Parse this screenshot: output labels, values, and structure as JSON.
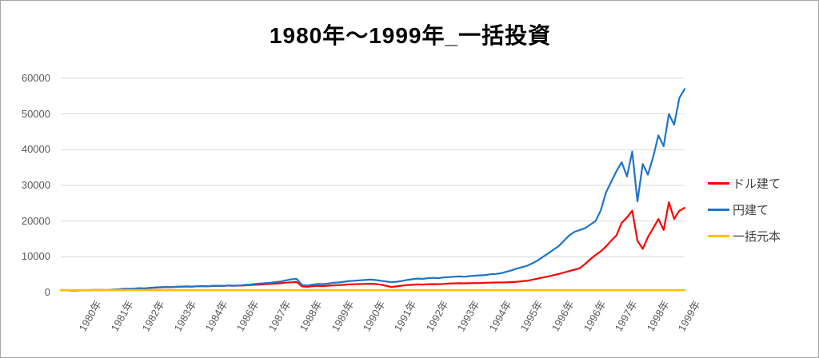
{
  "frame": {
    "background": "#FFFFFF",
    "border_color": "#A6A6A6"
  },
  "chart_data": {
    "type": "line",
    "title": "1980年～1999年_一括投資",
    "xlabel": "",
    "ylabel": "",
    "ylim": [
      0,
      60000
    ],
    "y_ticks": [
      0,
      10000,
      20000,
      30000,
      40000,
      50000,
      60000
    ],
    "grid": "horizontal",
    "grid_color": "#D9D9D9",
    "axis_label_color": "#595959",
    "legend_position": "right",
    "x_labels": [
      "1980年",
      "1981年",
      "1982年",
      "1983年",
      "1984年",
      "1986年",
      "1987年",
      "1988年",
      "1989年",
      "1990年",
      "1991年",
      "1992年",
      "1993年",
      "1994年",
      "1995年",
      "1996年",
      "1996年",
      "1997年",
      "1998年",
      "1999年"
    ],
    "series": [
      {
        "name": "ドル建て",
        "color": "#FF0000",
        "values": [
          650,
          600,
          520,
          560,
          620,
          660,
          700,
          730,
          700,
          680,
          760,
          850,
          1020,
          1000,
          1050,
          1150,
          1100,
          1250,
          1350,
          1400,
          1520,
          1470,
          1570,
          1620,
          1670,
          1620,
          1720,
          1770,
          1720,
          1820,
          1870,
          1820,
          1920,
          1870,
          1920,
          2000,
          2050,
          2150,
          2200,
          2300,
          2400,
          2500,
          2600,
          2750,
          2850,
          2900,
          1700,
          1600,
          1750,
          1850,
          1800,
          1900,
          2000,
          2050,
          2150,
          2250,
          2300,
          2350,
          2400,
          2450,
          2400,
          2200,
          1900,
          1550,
          1700,
          1900,
          2050,
          2150,
          2250,
          2200,
          2300,
          2350,
          2300,
          2400,
          2500,
          2550,
          2600,
          2550,
          2600,
          2650,
          2650,
          2700,
          2750,
          2800,
          2800,
          2850,
          2900,
          3000,
          3150,
          3300,
          3600,
          3900,
          4200,
          4500,
          4850,
          5200,
          5600,
          6000,
          6400,
          6800,
          8000,
          9300,
          10500,
          11500,
          12900,
          14500,
          16000,
          19500,
          21000,
          22900,
          14500,
          12200,
          15500,
          18000,
          20600,
          17500,
          25300,
          20600,
          22900,
          23700
        ]
      },
      {
        "name": "円建て",
        "color": "#1F74C8",
        "values": [
          650,
          620,
          560,
          540,
          600,
          580,
          640,
          700,
          680,
          720,
          800,
          900,
          980,
          1050,
          1100,
          1200,
          1150,
          1300,
          1400,
          1500,
          1550,
          1500,
          1600,
          1650,
          1700,
          1650,
          1750,
          1800,
          1750,
          1850,
          1900,
          1850,
          1950,
          1900,
          1950,
          2100,
          2200,
          2400,
          2500,
          2600,
          2700,
          2900,
          3100,
          3400,
          3700,
          3800,
          2100,
          1950,
          2200,
          2400,
          2350,
          2500,
          2700,
          2800,
          3000,
          3200,
          3300,
          3400,
          3500,
          3600,
          3500,
          3300,
          3100,
          2900,
          3000,
          3200,
          3500,
          3700,
          3900,
          3800,
          4000,
          4100,
          4000,
          4200,
          4300,
          4400,
          4500,
          4400,
          4600,
          4700,
          4800,
          4900,
          5100,
          5200,
          5400,
          5800,
          6200,
          6700,
          7100,
          7500,
          8200,
          9000,
          10000,
          11000,
          12000,
          13000,
          14500,
          16000,
          17000,
          17500,
          18000,
          19000,
          20000,
          23000,
          28000,
          31000,
          34000,
          36500,
          32500,
          39500,
          25500,
          36000,
          33000,
          38000,
          44000,
          41000,
          50000,
          47000,
          54500,
          57000
        ]
      },
      {
        "name": "一括元本",
        "color": "#FFC000",
        "constant": 650
      }
    ]
  }
}
